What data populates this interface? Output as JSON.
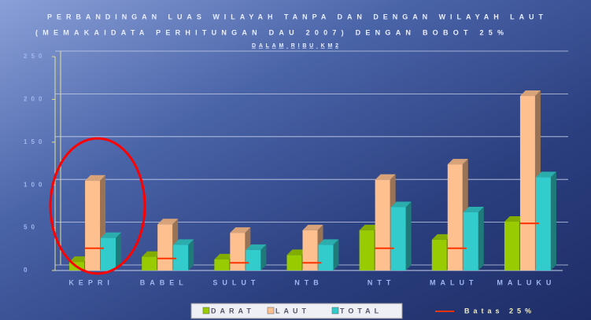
{
  "chart_data": {
    "type": "bar3d",
    "title": "PERBANDINGAN LUAS WILAYAH TANPA DAN DENGAN WILAYAH LAUT",
    "subtitle": "(MEMAKAIDATA PERHITUNGAN DAU 2007) DENGAN BOBOT 25%",
    "unit": "DALAM RIBU KM2",
    "categories": [
      "KEPRI",
      "BABEL",
      "SULUT",
      "NTB",
      "NTT",
      "MALUT",
      "MALUKU"
    ],
    "series": [
      {
        "name": "DARAT",
        "color": "#99cc00",
        "values": [
          10,
          16,
          13,
          18,
          47,
          36,
          57
        ]
      },
      {
        "name": "LAUT",
        "color": "#ffc090",
        "values": [
          105,
          54,
          44,
          47,
          106,
          124,
          204
        ]
      },
      {
        "name": "TOTAL",
        "color": "#33cccc",
        "values": [
          38,
          30,
          24,
          30,
          74,
          68,
          109
        ]
      }
    ],
    "threshold": {
      "name": "Batas 25%",
      "color": "#ff3300",
      "values": [
        26,
        14,
        9,
        9,
        26,
        26,
        55
      ]
    },
    "ylim": [
      0,
      250
    ],
    "yticks": [
      0,
      50,
      100,
      150,
      200,
      250
    ],
    "grid": true
  }
}
